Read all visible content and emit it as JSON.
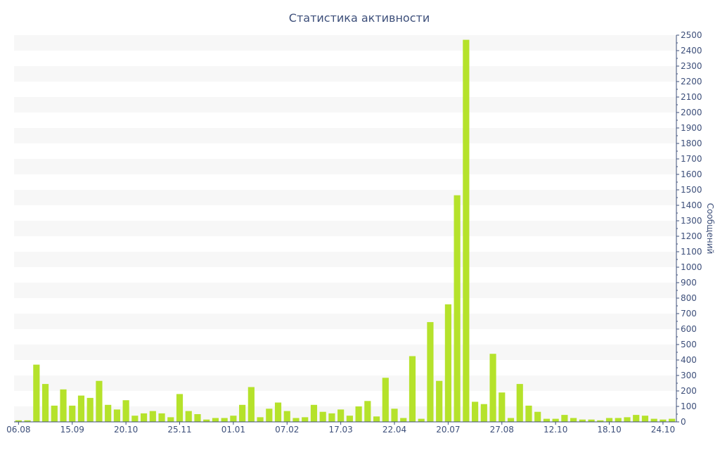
{
  "chart_data": {
    "type": "bar",
    "title": "Статистика активности",
    "xlabel": "",
    "ylabel": "Сообщений",
    "ylim": [
      0,
      2500
    ],
    "ytick_step": 100,
    "x_tick_labels": [
      "06.08",
      "15.09",
      "20.10",
      "25.11",
      "01.01",
      "07.02",
      "17.03",
      "22.04",
      "20.07",
      "27.08",
      "12.10",
      "18.10",
      "24.10"
    ],
    "x_tick_at_bar": [
      0,
      6,
      12,
      18,
      24,
      30,
      36,
      42,
      48,
      54,
      60,
      66,
      72
    ],
    "values": [
      10,
      10,
      370,
      245,
      105,
      210,
      105,
      170,
      155,
      265,
      110,
      80,
      140,
      40,
      55,
      70,
      55,
      30,
      180,
      70,
      50,
      15,
      25,
      25,
      40,
      110,
      225,
      30,
      85,
      125,
      70,
      25,
      30,
      110,
      65,
      55,
      80,
      40,
      100,
      135,
      35,
      285,
      85,
      25,
      425,
      20,
      645,
      265,
      760,
      1465,
      2470,
      130,
      115,
      440,
      190,
      25,
      245,
      105,
      65,
      20,
      20,
      45,
      25,
      15,
      15,
      10,
      25,
      25,
      30,
      45,
      40,
      20,
      15,
      20
    ],
    "colors": {
      "bar": "#b5e22b",
      "band": "#f7f7f7",
      "axis": "#3d4f7a",
      "text": "#3d4f7a"
    }
  }
}
